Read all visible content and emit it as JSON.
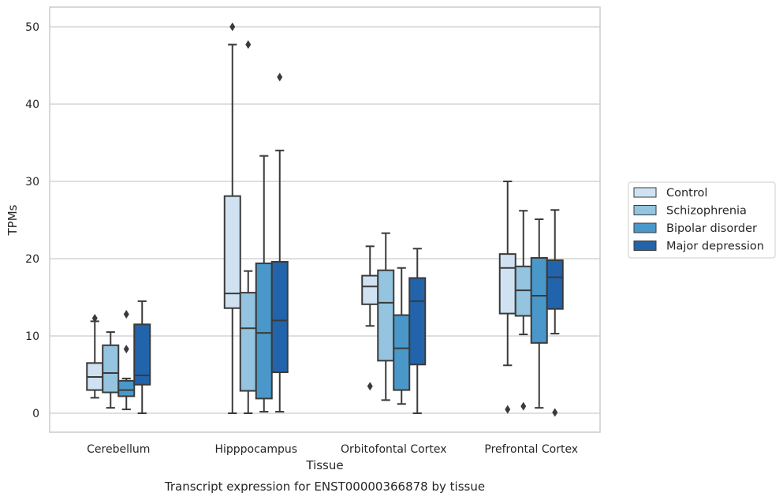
{
  "chart_data": {
    "type": "box",
    "title": "",
    "caption": "Transcript expression for ENST00000366878 by tissue",
    "xlabel": "Tissue",
    "ylabel": "TPMs",
    "ylim": [
      -2.4,
      52.6
    ],
    "yticks": [
      0,
      10,
      20,
      30,
      40,
      50
    ],
    "grid": "horizontal",
    "legend_position": "right",
    "categories": [
      "Cerebellum",
      "Hipppocampus",
      "Orbitofontal Cortex",
      "Prefrontal Cortex"
    ],
    "series": [
      {
        "name": "Control",
        "color": "#d0e1f2",
        "boxes": [
          {
            "whislo": 2.0,
            "q1": 3.0,
            "med": 4.7,
            "q3": 6.5,
            "whishi": 11.9,
            "fliers": [
              12.3
            ]
          },
          {
            "whislo": 0.0,
            "q1": 13.6,
            "med": 15.5,
            "q3": 28.1,
            "whishi": 47.7,
            "fliers": [
              50.0
            ]
          },
          {
            "whislo": 11.3,
            "q1": 14.1,
            "med": 16.4,
            "q3": 17.8,
            "whishi": 21.6,
            "fliers": [
              3.5
            ]
          },
          {
            "whislo": 6.2,
            "q1": 12.9,
            "med": 18.8,
            "q3": 20.6,
            "whishi": 30.0,
            "fliers": [
              0.5
            ]
          }
        ]
      },
      {
        "name": "Schizophrenia",
        "color": "#94c4df",
        "boxes": [
          {
            "whislo": 0.7,
            "q1": 2.7,
            "med": 5.2,
            "q3": 8.8,
            "whishi": 10.5,
            "fliers": []
          },
          {
            "whislo": 0.0,
            "q1": 2.9,
            "med": 11.0,
            "q3": 15.6,
            "whishi": 18.4,
            "fliers": [
              47.7
            ]
          },
          {
            "whislo": 1.7,
            "q1": 6.8,
            "med": 14.3,
            "q3": 18.5,
            "whishi": 23.3,
            "fliers": []
          },
          {
            "whislo": 10.2,
            "q1": 12.6,
            "med": 15.9,
            "q3": 19.0,
            "whishi": 26.2,
            "fliers": [
              0.9
            ]
          }
        ]
      },
      {
        "name": "Bipolar disorder",
        "color": "#4a98c9",
        "boxes": [
          {
            "whislo": 0.5,
            "q1": 2.2,
            "med": 3.0,
            "q3": 4.2,
            "whishi": 4.5,
            "fliers": [
              8.3,
              12.8
            ]
          },
          {
            "whislo": 0.2,
            "q1": 1.9,
            "med": 10.4,
            "q3": 19.4,
            "whishi": 33.3,
            "fliers": []
          },
          {
            "whislo": 1.2,
            "q1": 3.0,
            "med": 8.4,
            "q3": 12.7,
            "whishi": 18.8,
            "fliers": []
          },
          {
            "whislo": 0.7,
            "q1": 9.1,
            "med": 15.2,
            "q3": 20.1,
            "whishi": 25.1,
            "fliers": []
          }
        ]
      },
      {
        "name": "Major depression",
        "color": "#2164ab",
        "boxes": [
          {
            "whislo": 0.0,
            "q1": 3.7,
            "med": 4.9,
            "q3": 11.5,
            "whishi": 14.5,
            "fliers": []
          },
          {
            "whislo": 0.2,
            "q1": 5.3,
            "med": 12.0,
            "q3": 19.6,
            "whishi": 34.0,
            "fliers": [
              43.5
            ]
          },
          {
            "whislo": 0.0,
            "q1": 6.3,
            "med": 14.5,
            "q3": 17.5,
            "whishi": 21.3,
            "fliers": []
          },
          {
            "whislo": 10.3,
            "q1": 13.5,
            "med": 17.6,
            "q3": 19.8,
            "whishi": 26.3,
            "fliers": [
              0.1
            ]
          }
        ]
      }
    ]
  }
}
